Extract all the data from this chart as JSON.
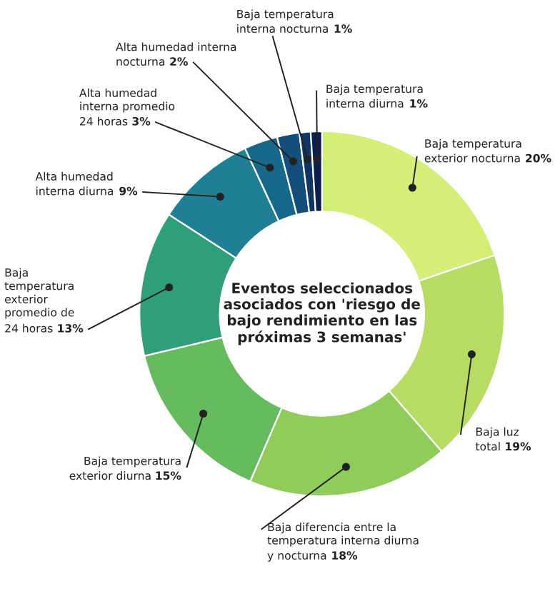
{
  "chart_data": {
    "type": "donut",
    "title": "Eventos seleccionados asociados con 'riesgo de bajo rendimiento en las próximas 3 semanas'",
    "categories": [
      "Baja temperatura\nexterior nocturna",
      "Baja luz\ntotal",
      "Baja diferencia entre la\ntemperatura interna diurna\ny nocturna",
      "Baja temperatura\nexterior diurna",
      "Baja\ntemperatura\nexterior\npromedio de\n24 horas",
      "Alta humedad\ninterna diurna",
      "Alta humedad\ninterna promedio\n24 horas",
      "Alta humedad interna\nnocturna",
      "Baja temperatura\ninterna nocturna",
      "Baja temperatura\ninterna diurna"
    ],
    "values": [
      20,
      19,
      18,
      15,
      13,
      9,
      3,
      2,
      1,
      1
    ],
    "value_labels": [
      "20%",
      "19%",
      "18%",
      "15%",
      "13%",
      "9%",
      "3%",
      "2%",
      "1%",
      "1%"
    ],
    "colors": [
      "#d4ee78",
      "#b7dc63",
      "#8fcc5a",
      "#66bb5f",
      "#2e9e7b",
      "#1f7f94",
      "#17698a",
      "#134f7a",
      "#0e3563",
      "#0a1f4e"
    ]
  }
}
